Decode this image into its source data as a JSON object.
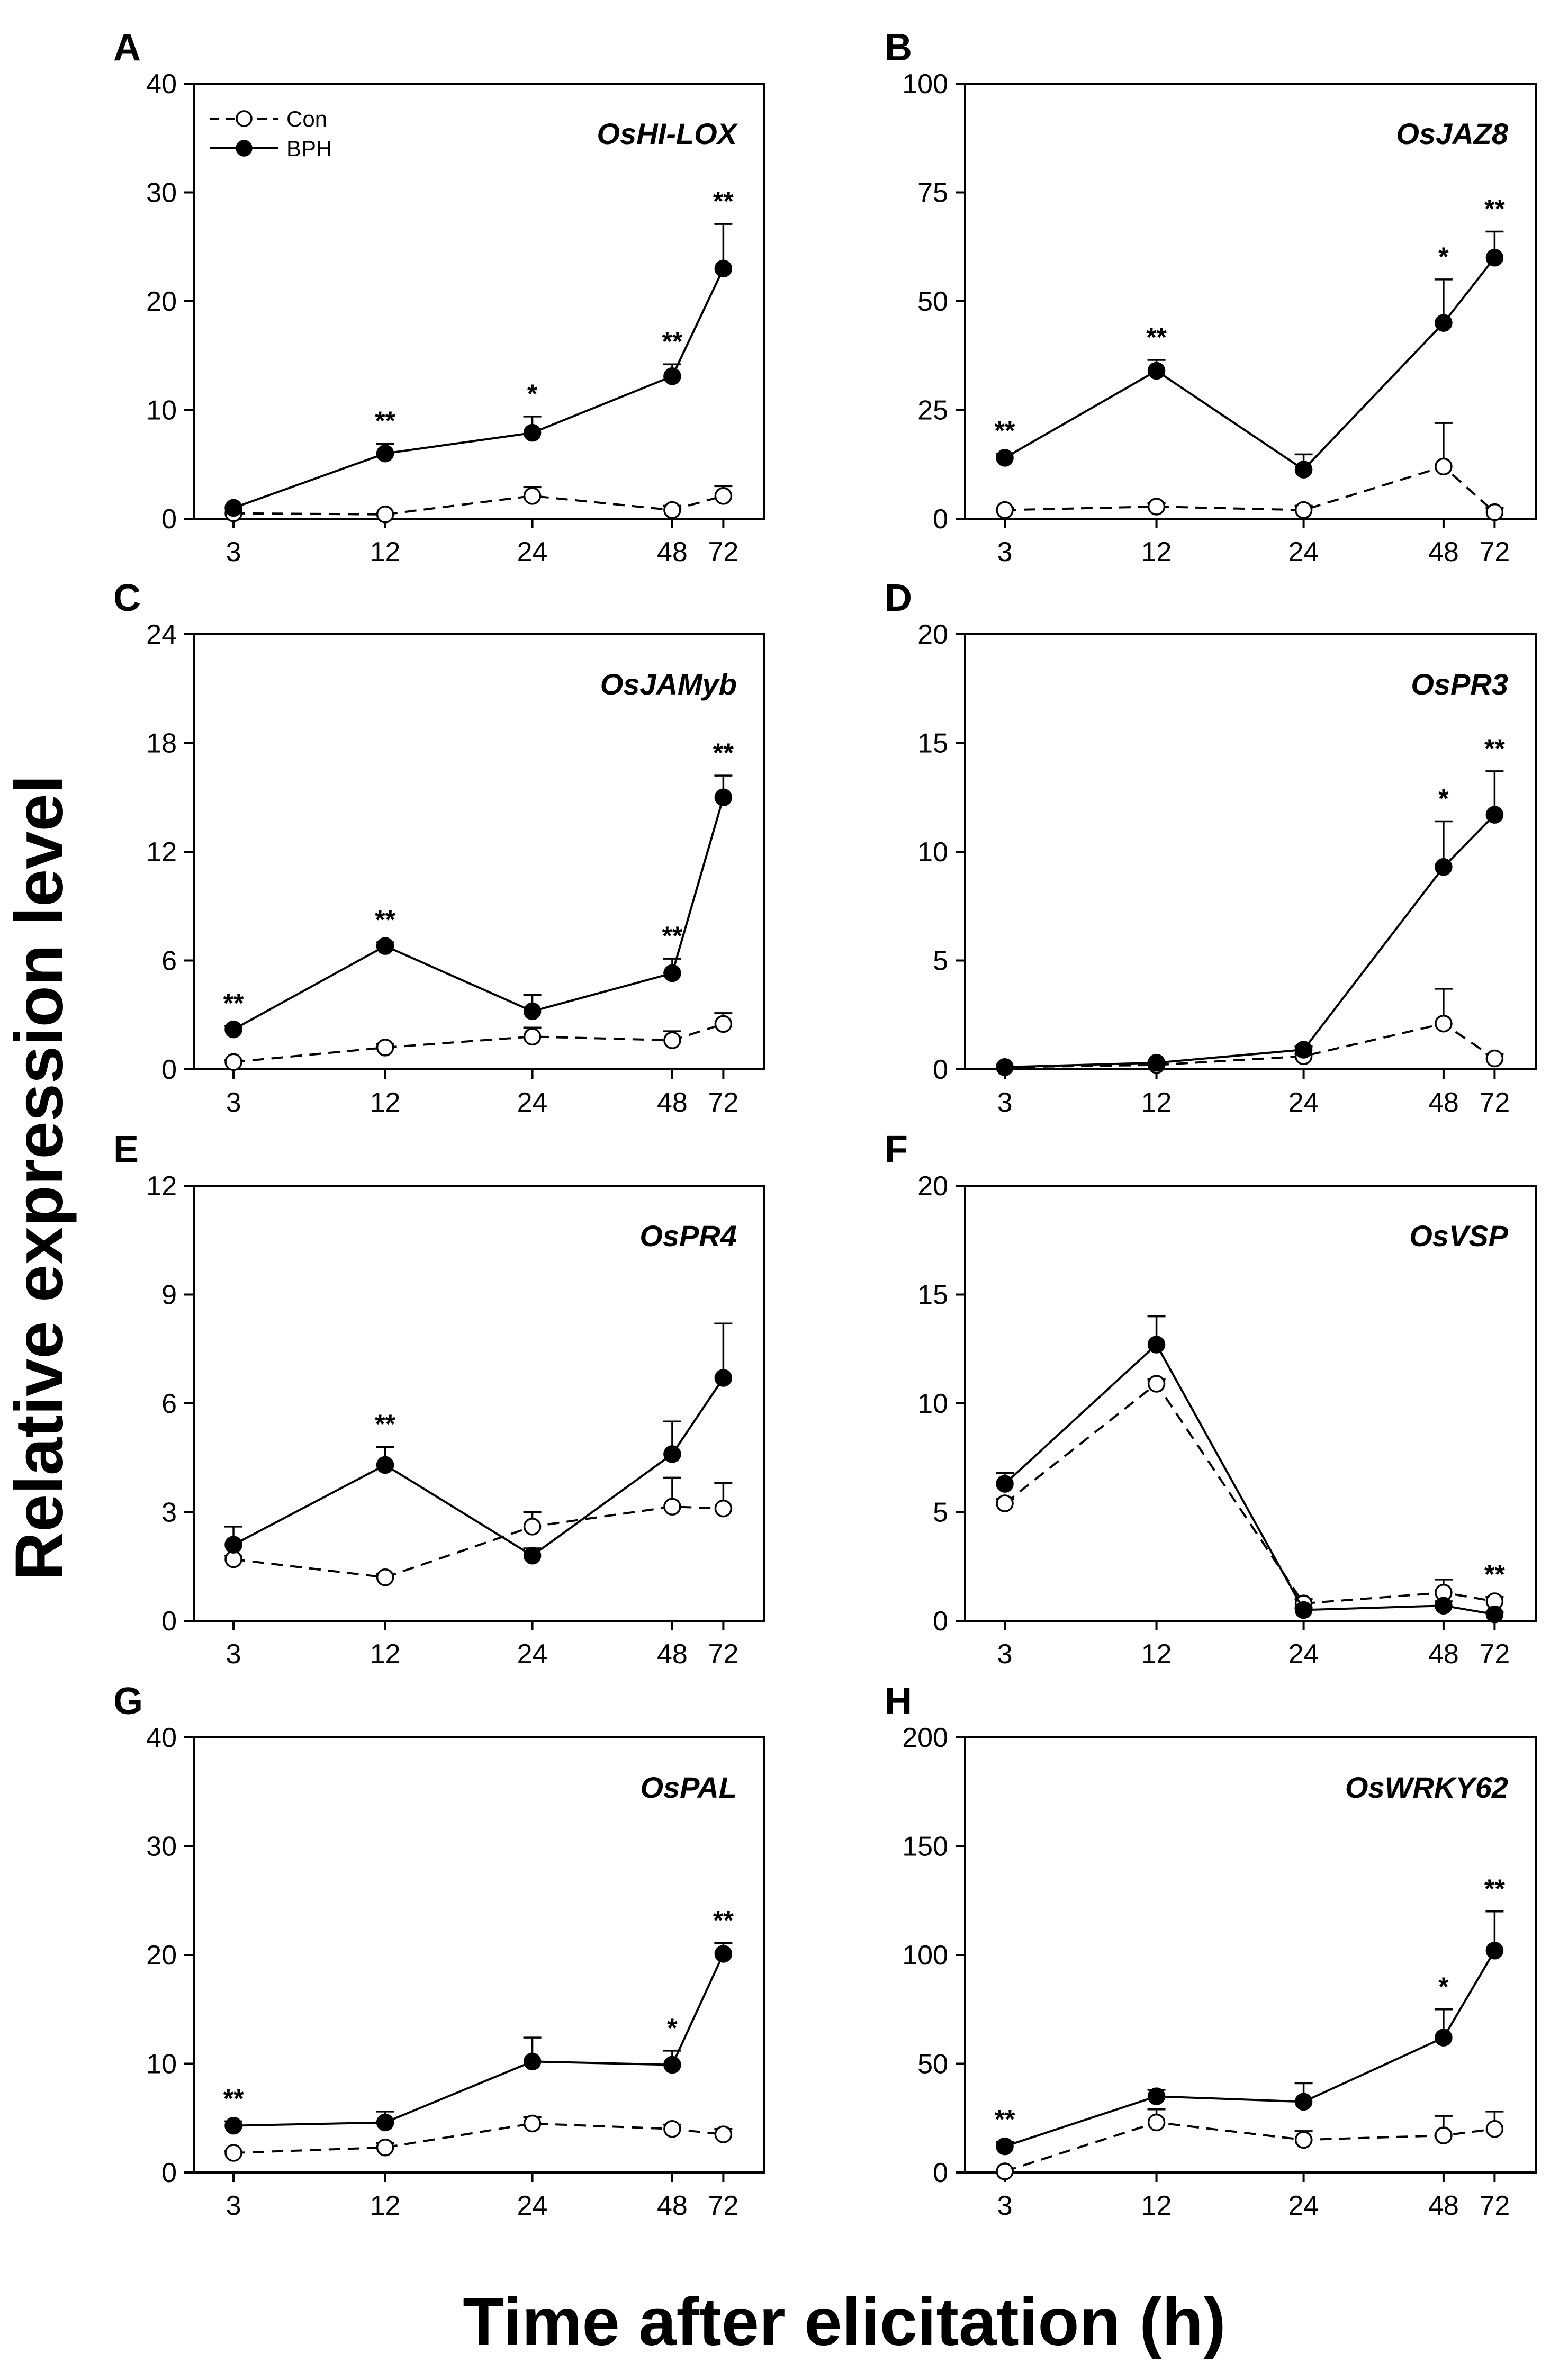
{
  "figure": {
    "ylabel": "Relative expression level",
    "xlabel": "Time after elicitation (h)",
    "legend": [
      {
        "label": "Con",
        "marker": "open-circle",
        "line": "dashed"
      },
      {
        "label": "BPH",
        "marker": "filled-circle",
        "line": "solid"
      }
    ]
  },
  "chart_data": [
    {
      "panel": "A",
      "title": "OsHI-LOX",
      "type": "line",
      "categories": [
        "3",
        "12",
        "24",
        "48",
        "72"
      ],
      "ylim": [
        0,
        40
      ],
      "yticks": [
        0,
        10,
        20,
        30,
        40
      ],
      "series": [
        {
          "name": "Con",
          "values": [
            0.5,
            0.4,
            2.1,
            0.8,
            2.1
          ],
          "errors": [
            0,
            0,
            0.8,
            0.4,
            0.9
          ]
        },
        {
          "name": "BPH",
          "values": [
            1.0,
            6.0,
            7.9,
            13.1,
            23.0
          ],
          "errors": [
            0,
            0.9,
            1.5,
            1.1,
            4.1
          ]
        }
      ],
      "significance": [
        "",
        "**",
        "*",
        "**",
        "**"
      ]
    },
    {
      "panel": "B",
      "title": "OsJAZ8",
      "type": "line",
      "categories": [
        "3",
        "12",
        "24",
        "48",
        "72"
      ],
      "ylim": [
        0,
        100
      ],
      "yticks": [
        0,
        25,
        50,
        75,
        100
      ],
      "series": [
        {
          "name": "Con",
          "values": [
            2.0,
            2.8,
            2.0,
            12.0,
            1.5
          ],
          "errors": [
            0.5,
            0.8,
            1.0,
            10.0,
            1.0
          ]
        },
        {
          "name": "BPH",
          "values": [
            14.0,
            34.0,
            11.3,
            45.0,
            60.0
          ],
          "errors": [
            1.0,
            2.5,
            3.5,
            10.0,
            6.0
          ]
        }
      ],
      "significance": [
        "**",
        "**",
        "",
        "*",
        "**"
      ]
    },
    {
      "panel": "C",
      "title": "OsJAMyb",
      "type": "line",
      "categories": [
        "3",
        "12",
        "24",
        "48",
        "72"
      ],
      "ylim": [
        0,
        24
      ],
      "yticks": [
        0,
        6,
        12,
        18,
        24
      ],
      "series": [
        {
          "name": "Con",
          "values": [
            0.4,
            1.2,
            1.8,
            1.6,
            2.5
          ],
          "errors": [
            0.1,
            0.2,
            0.5,
            0.5,
            0.6
          ]
        },
        {
          "name": "BPH",
          "values": [
            2.2,
            6.8,
            3.2,
            5.3,
            15.0
          ],
          "errors": [
            0.2,
            0.2,
            0.9,
            0.8,
            1.2
          ]
        }
      ],
      "significance": [
        "**",
        "**",
        "",
        "**",
        "**"
      ]
    },
    {
      "panel": "D",
      "title": "OsPR3",
      "type": "line",
      "categories": [
        "3",
        "12",
        "24",
        "48",
        "72"
      ],
      "ylim": [
        0,
        20
      ],
      "yticks": [
        0,
        5,
        10,
        15,
        20
      ],
      "series": [
        {
          "name": "Con",
          "values": [
            0.1,
            0.2,
            0.6,
            2.1,
            0.5
          ],
          "errors": [
            0,
            0.05,
            0.1,
            1.6,
            0.2
          ]
        },
        {
          "name": "BPH",
          "values": [
            0.1,
            0.3,
            0.9,
            9.3,
            11.7
          ],
          "errors": [
            0,
            0.05,
            0.15,
            2.1,
            2.0
          ]
        }
      ],
      "significance": [
        "",
        "",
        "",
        "*",
        "**"
      ]
    },
    {
      "panel": "E",
      "title": "OsPR4",
      "type": "line",
      "categories": [
        "3",
        "12",
        "24",
        "48",
        "72"
      ],
      "ylim": [
        0,
        12
      ],
      "yticks": [
        0,
        3,
        6,
        9,
        12
      ],
      "series": [
        {
          "name": "Con",
          "values": [
            1.7,
            1.2,
            2.6,
            3.15,
            3.1
          ],
          "errors": [
            0.1,
            0.1,
            0.4,
            0.8,
            0.7
          ]
        },
        {
          "name": "BPH",
          "values": [
            2.1,
            4.3,
            1.8,
            4.6,
            6.7
          ],
          "errors": [
            0.5,
            0.5,
            0.2,
            0.9,
            1.5
          ]
        }
      ],
      "significance": [
        "",
        "**",
        "",
        "",
        ""
      ]
    },
    {
      "panel": "F",
      "title": "OsVSP",
      "type": "line",
      "categories": [
        "3",
        "12",
        "24",
        "48",
        "72"
      ],
      "ylim": [
        0,
        20
      ],
      "yticks": [
        0,
        5,
        10,
        15,
        20
      ],
      "series": [
        {
          "name": "Con",
          "values": [
            5.4,
            10.9,
            0.8,
            1.3,
            0.9
          ],
          "errors": [
            0.2,
            0.2,
            0.2,
            0.6,
            0.2
          ]
        },
        {
          "name": "BPH",
          "values": [
            6.3,
            12.7,
            0.5,
            0.7,
            0.3
          ],
          "errors": [
            0.5,
            1.3,
            0.1,
            0.2,
            0.1
          ]
        }
      ],
      "significance": [
        "",
        "",
        "",
        "",
        "**"
      ]
    },
    {
      "panel": "G",
      "title": "OsPAL",
      "type": "line",
      "categories": [
        "3",
        "12",
        "24",
        "48",
        "72"
      ],
      "ylim": [
        0,
        40
      ],
      "yticks": [
        0,
        10,
        20,
        30,
        40
      ],
      "series": [
        {
          "name": "Con",
          "values": [
            1.8,
            2.3,
            4.5,
            4.0,
            3.5
          ],
          "errors": [
            0.2,
            0.4,
            0.6,
            0.4,
            0.5
          ]
        },
        {
          "name": "BPH",
          "values": [
            4.3,
            4.6,
            10.2,
            9.9,
            20.1
          ],
          "errors": [
            0.4,
            1.0,
            2.2,
            1.3,
            1.0
          ]
        }
      ],
      "significance": [
        "**",
        "",
        "",
        "*",
        "**"
      ]
    },
    {
      "panel": "H",
      "title": "OsWRKY62",
      "type": "line",
      "categories": [
        "3",
        "12",
        "24",
        "48",
        "72"
      ],
      "ylim": [
        0,
        200
      ],
      "yticks": [
        0,
        50,
        100,
        150,
        200
      ],
      "series": [
        {
          "name": "Con",
          "values": [
            0.5,
            23.0,
            15.0,
            17.0,
            20.0
          ],
          "errors": [
            0.2,
            6.0,
            4.0,
            9.0,
            8.0
          ]
        },
        {
          "name": "BPH",
          "values": [
            12.0,
            35.0,
            32.5,
            62.0,
            102.0
          ],
          "errors": [
            2.0,
            3.0,
            8.5,
            13.0,
            18.0
          ]
        }
      ],
      "significance": [
        "**",
        "",
        "",
        "*",
        "**"
      ]
    }
  ]
}
